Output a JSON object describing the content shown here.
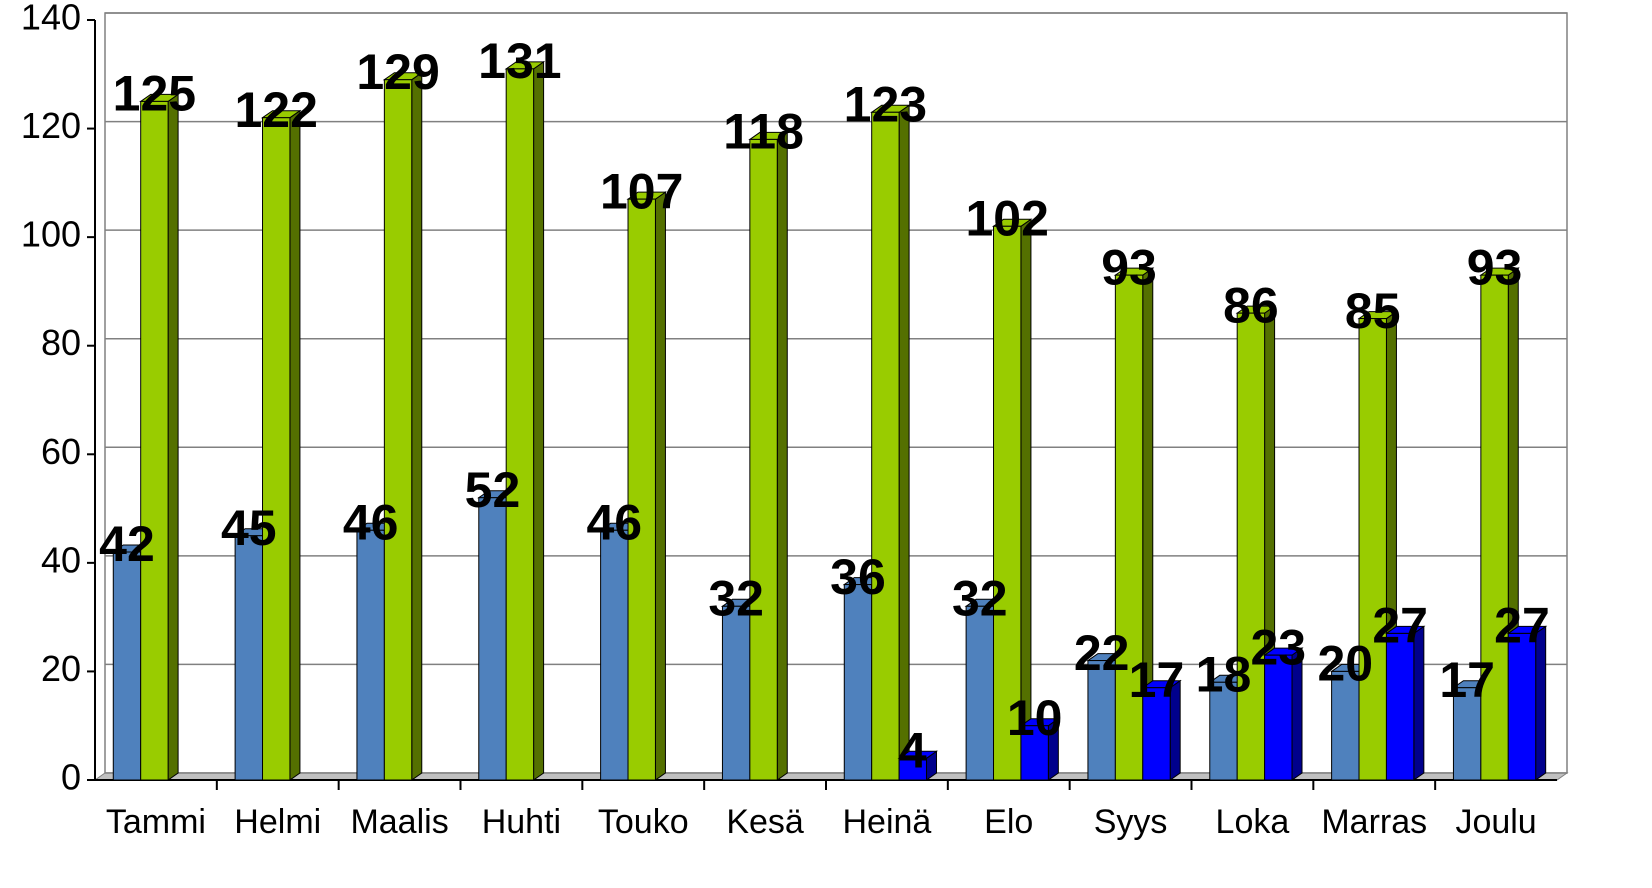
{
  "chart_data": {
    "type": "bar3d",
    "categories": [
      "Tammi",
      "Helmi",
      "Maalis",
      "Huhti",
      "Touko",
      "Kesä",
      "Heinä",
      "Elo",
      "Syys",
      "Loka",
      "Marras",
      "Joulu"
    ],
    "series": [
      {
        "color": "#4f81bd",
        "values": [
          42,
          45,
          46,
          52,
          46,
          32,
          36,
          32,
          22,
          18,
          20,
          17
        ]
      },
      {
        "color": "#99cc00",
        "values": [
          125,
          122,
          129,
          131,
          107,
          118,
          123,
          102,
          93,
          86,
          85,
          93
        ]
      },
      {
        "color": "#0000ff",
        "values": [
          null,
          null,
          null,
          null,
          null,
          null,
          4,
          10,
          17,
          23,
          27,
          27
        ]
      }
    ],
    "ylim": [
      0,
      140
    ],
    "yticks": [
      0,
      20,
      40,
      60,
      80,
      100,
      120,
      140
    ],
    "grid": true
  }
}
